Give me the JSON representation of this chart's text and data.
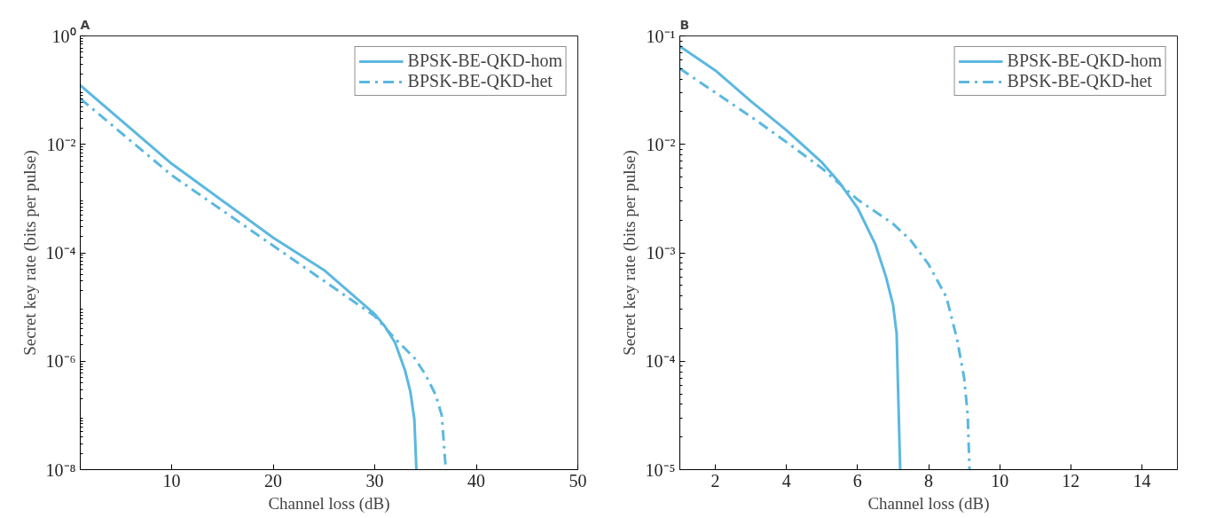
{
  "chart_data": [
    {
      "type": "line",
      "title": "A",
      "xlabel": "Channel loss (dB)",
      "ylabel": "Secret key rate (bits per pulse)",
      "log": "y",
      "grid": false,
      "legend": "top right",
      "xlim": [
        1,
        50
      ],
      "xticks": [
        10,
        20,
        30,
        40,
        50
      ],
      "ylim": [
        1e-08,
        1
      ],
      "yticks": [
        {
          "value": 1,
          "label": "10⁰"
        },
        {
          "value": 0.01,
          "label": "10⁻²"
        },
        {
          "value": 0.0001,
          "label": "10⁻⁴"
        },
        {
          "value": 1e-06,
          "label": "10⁻⁶"
        },
        {
          "value": 1e-08,
          "label": "10⁻⁸"
        }
      ],
      "series": [
        {
          "name": "BPSK-BE-QKD-hom",
          "color": "#5bb8e0",
          "line_style": "solid",
          "x": [
            1,
            10,
            20,
            25,
            30,
            31,
            32,
            33,
            33.5,
            33.9,
            34.1
          ],
          "values": [
            0.123,
            0.0044,
            0.00019,
            4.8e-05,
            7.4e-06,
            4.4e-06,
            2.2e-06,
            6.6e-07,
            2.8e-07,
            8.5e-08,
            1e-08
          ]
        },
        {
          "name": "BPSK-BE-QKD-het",
          "color": "#5bb8e0",
          "line_style": "dashdot",
          "x": [
            1,
            10,
            20,
            30,
            32,
            34,
            35,
            36,
            36.6,
            37
          ],
          "values": [
            0.07,
            0.0027,
            0.000135,
            6.8e-06,
            2.6e-06,
            1.1e-06,
            5.6e-07,
            2.4e-07,
            1e-07,
            1e-08
          ]
        }
      ]
    },
    {
      "type": "line",
      "title": "B",
      "xlabel": "Channel loss (dB)",
      "ylabel": "Secret key rate (bits per pulse)",
      "log": "y",
      "grid": false,
      "legend": "top right",
      "xlim": [
        1,
        15
      ],
      "xticks": [
        2,
        4,
        6,
        8,
        10,
        12,
        14
      ],
      "ylim": [
        1e-05,
        0.1
      ],
      "yticks": [
        {
          "value": 0.1,
          "label": "10⁻¹"
        },
        {
          "value": 0.01,
          "label": "10⁻²"
        },
        {
          "value": 0.001,
          "label": "10⁻³"
        },
        {
          "value": 0.0001,
          "label": "10⁻⁴"
        },
        {
          "value": 1e-05,
          "label": "10⁻⁵"
        }
      ],
      "series": [
        {
          "name": "BPSK-BE-QKD-hom",
          "color": "#5bb8e0",
          "line_style": "solid",
          "x": [
            1,
            2,
            3,
            4,
            5,
            5.5,
            6,
            6.5,
            6.8,
            7,
            7.1,
            7.2
          ],
          "values": [
            0.08,
            0.048,
            0.025,
            0.0135,
            0.0068,
            0.0044,
            0.0026,
            0.0012,
            0.0006,
            0.00033,
            0.00018,
            1e-05
          ]
        },
        {
          "name": "BPSK-BE-QKD-het",
          "color": "#5bb8e0",
          "line_style": "dashdot",
          "x": [
            1,
            2,
            3,
            4,
            5,
            6,
            7,
            7.5,
            8,
            8.5,
            8.8,
            9,
            9.1,
            9.15
          ],
          "values": [
            0.05,
            0.03,
            0.018,
            0.0105,
            0.006,
            0.0031,
            0.00185,
            0.0013,
            0.00078,
            0.00039,
            0.00016,
            7e-05,
            3.2e-05,
            1e-05
          ]
        }
      ]
    }
  ]
}
